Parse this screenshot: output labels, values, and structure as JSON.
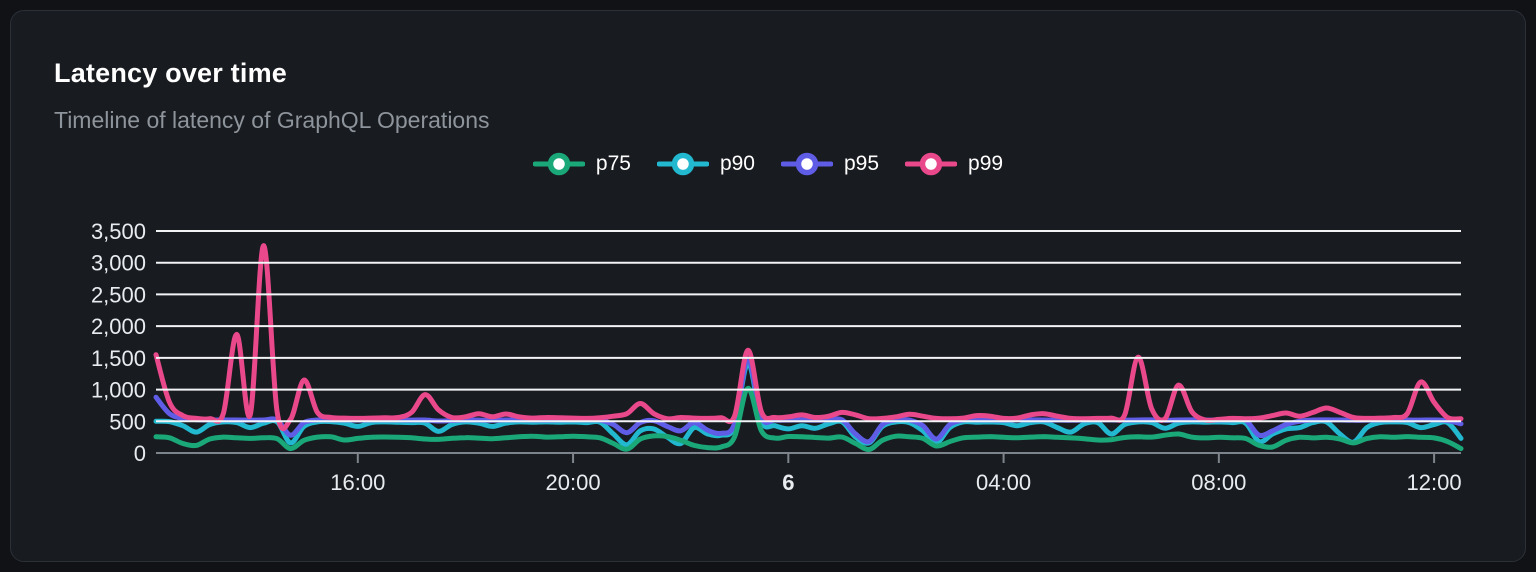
{
  "card": {
    "title": "Latency over time",
    "subtitle": "Timeline of latency of GraphQL Operations"
  },
  "colors": {
    "page_background": "#101215",
    "card_background": "#181b20",
    "card_border": "#2c3037",
    "title_text": "#ffffff",
    "subtitle_text": "#8e949b",
    "axis_label_text": "#e9ecef",
    "gridline": "#f1f3f5",
    "axis_line": "#7d848c"
  },
  "chart_data": {
    "type": "line",
    "title": "Latency over time",
    "subtitle": "Timeline of latency of GraphQL Operations",
    "unit": "ms",
    "legend_position": "top-center",
    "grid": "horizontal",
    "x_axis": {
      "start_hour": 12.25,
      "step_hour": 0.25,
      "ticks": [
        {
          "hour": 16,
          "label": "16:00",
          "bold": false
        },
        {
          "hour": 20,
          "label": "20:00",
          "bold": false
        },
        {
          "hour": 24,
          "label": "6",
          "bold": true
        },
        {
          "hour": 28,
          "label": "04:00",
          "bold": false
        },
        {
          "hour": 32,
          "label": "08:00",
          "bold": false
        },
        {
          "hour": 36,
          "label": "12:00",
          "bold": false
        }
      ]
    },
    "y_axis": {
      "min": 0,
      "max": 3500,
      "grid_step": 500,
      "tick_labels": [
        "0",
        "500",
        "1,000",
        "1,500",
        "2,000",
        "2,500",
        "3,000",
        "3,500"
      ]
    },
    "draw_order": [
      "p90",
      "p95",
      "p75",
      "p99"
    ],
    "series": [
      {
        "name": "p75",
        "color": "#1aa879",
        "values": [
          255,
          240,
          150,
          120,
          220,
          250,
          240,
          230,
          240,
          225,
          70,
          200,
          250,
          255,
          205,
          230,
          248,
          252,
          248,
          240,
          220,
          215,
          232,
          242,
          235,
          225,
          240,
          255,
          265,
          250,
          255,
          265,
          255,
          240,
          150,
          60,
          220,
          270,
          260,
          200,
          120,
          85,
          95,
          250,
          1020,
          350,
          235,
          260,
          255,
          245,
          235,
          250,
          150,
          55,
          200,
          265,
          255,
          230,
          110,
          180,
          240,
          250,
          258,
          248,
          240,
          250,
          258,
          248,
          238,
          225,
          205,
          210,
          245,
          255,
          250,
          280,
          300,
          250,
          238,
          248,
          240,
          228,
          120,
          95,
          200,
          248,
          238,
          248,
          220,
          160,
          228,
          255,
          248,
          258,
          248,
          238,
          180,
          70
        ]
      },
      {
        "name": "p90",
        "color": "#22b8cf",
        "values": [
          500,
          495,
          430,
          330,
          450,
          490,
          480,
          400,
          470,
          490,
          160,
          420,
          490,
          495,
          470,
          420,
          480,
          490,
          485,
          480,
          470,
          340,
          450,
          490,
          470,
          420,
          470,
          490,
          485,
          490,
          485,
          490,
          480,
          485,
          300,
          130,
          350,
          380,
          250,
          150,
          400,
          300,
          280,
          420,
          1420,
          500,
          430,
          380,
          430,
          390,
          460,
          490,
          250,
          160,
          420,
          490,
          480,
          350,
          160,
          400,
          490,
          485,
          490,
          480,
          430,
          480,
          490,
          400,
          330,
          460,
          480,
          300,
          450,
          490,
          480,
          390,
          470,
          490,
          485,
          490,
          480,
          470,
          180,
          300,
          380,
          400,
          480,
          490,
          300,
          170,
          400,
          480,
          490,
          480,
          400,
          450,
          480,
          230
        ]
      },
      {
        "name": "p95",
        "color": "#5f5ce6",
        "values": [
          880,
          620,
          545,
          525,
          520,
          522,
          520,
          518,
          520,
          522,
          280,
          480,
          520,
          522,
          520,
          518,
          520,
          522,
          520,
          518,
          520,
          505,
          512,
          520,
          518,
          515,
          520,
          522,
          520,
          518,
          520,
          522,
          520,
          518,
          450,
          320,
          480,
          510,
          420,
          350,
          480,
          360,
          310,
          460,
          1480,
          560,
          520,
          518,
          520,
          515,
          520,
          522,
          300,
          180,
          450,
          520,
          518,
          430,
          220,
          450,
          520,
          522,
          520,
          518,
          520,
          522,
          520,
          518,
          515,
          520,
          522,
          520,
          518,
          520,
          522,
          515,
          520,
          522,
          520,
          518,
          520,
          515,
          280,
          350,
          450,
          500,
          520,
          522,
          520,
          515,
          518,
          520,
          522,
          520,
          518,
          520,
          510,
          460
        ]
      },
      {
        "name": "p99",
        "color": "#e9498b",
        "values": [
          1550,
          800,
          590,
          545,
          540,
          620,
          1870,
          600,
          3270,
          650,
          530,
          1150,
          640,
          560,
          550,
          545,
          550,
          555,
          560,
          640,
          920,
          680,
          560,
          570,
          620,
          570,
          615,
          570,
          550,
          560,
          555,
          550,
          545,
          555,
          580,
          620,
          780,
          620,
          540,
          560,
          550,
          545,
          555,
          580,
          1620,
          650,
          560,
          570,
          600,
          560,
          580,
          640,
          600,
          540,
          545,
          570,
          610,
          580,
          545,
          540,
          550,
          590,
          580,
          545,
          550,
          600,
          620,
          580,
          545,
          540,
          545,
          550,
          600,
          1510,
          700,
          540,
          1070,
          650,
          520,
          530,
          545,
          540,
          550,
          590,
          630,
          580,
          640,
          710,
          640,
          560,
          545,
          550,
          560,
          620,
          1120,
          800,
          560,
          540
        ]
      }
    ]
  }
}
